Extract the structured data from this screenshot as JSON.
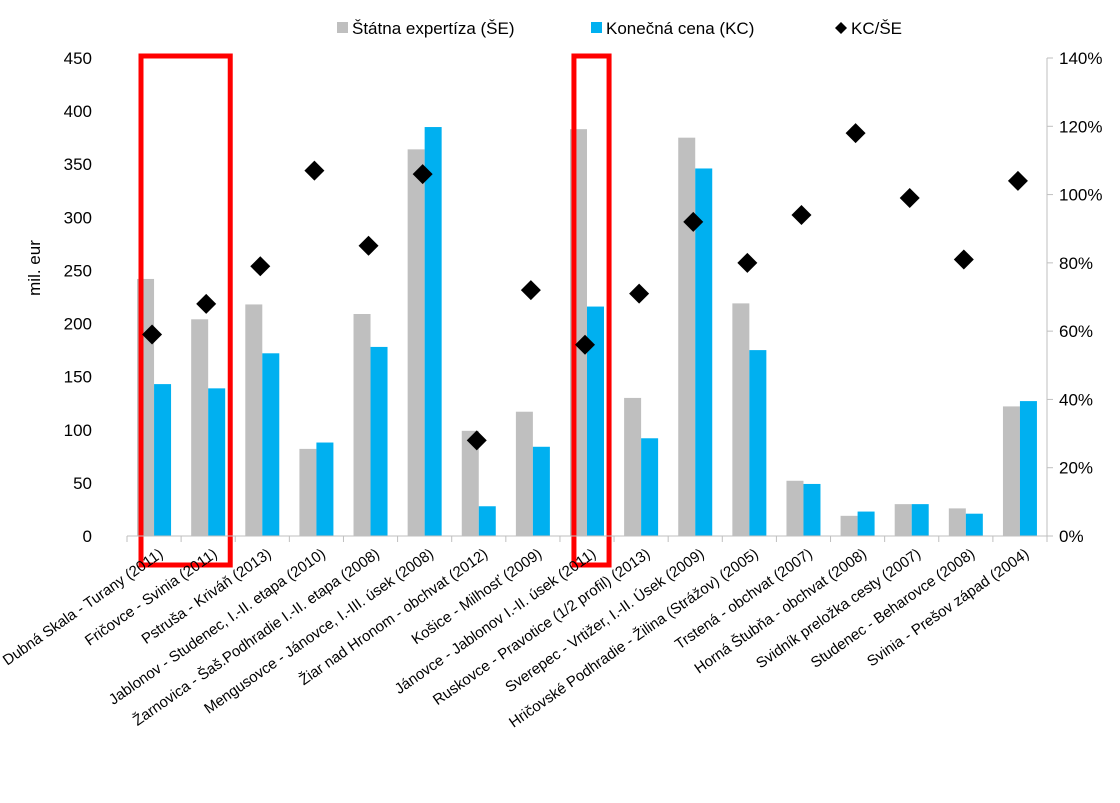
{
  "chart_data": {
    "type": "bar",
    "ylabel": "mil. eur",
    "ylim": [
      0,
      450
    ],
    "y_ticks": [
      "0",
      "50",
      "100",
      "150",
      "200",
      "250",
      "300",
      "350",
      "400",
      "450"
    ],
    "y2lim": [
      0,
      1.4
    ],
    "y2_ticks": [
      "0%",
      "20%",
      "40%",
      "60%",
      "80%",
      "100%",
      "120%",
      "140%"
    ],
    "grid": false,
    "legend_position": "top",
    "categories": [
      "Dubná Skala - Turany (2011)",
      "Fričovce - Svinia (2011)",
      "Pstruša - Kriváň (2013)",
      "Jablonov - Studenec, I.-II. etapa (2010)",
      "Žarnovica - Šaš.Podhradie I.-II. etapa (2008)",
      "Mengusovce - Jánovce, I.-III. úsek (2008)",
      "Žiar nad Hronom - obchvat (2012)",
      "Košice - Milhosť (2009)",
      "Jánovce - Jablonov I.-II. úsek (2011)",
      "Ruskovce - Pravotice (1/2 profil) (2013)",
      "Sverepec - Vrtižer, I.-II. Úsek (2009)",
      "Hričovské Podhradie - Žilina (Strážov) (2005)",
      "Trstená - obchvat (2007)",
      "Horná Štubňa - obchvat (2008)",
      "Svidník preložka cesty (2007)",
      "Studenec - Beharovce (2008)",
      "Svinia - Prešov západ (2004)"
    ],
    "series": [
      {
        "name": "Štátna expertíza (ŠE)",
        "type": "bar",
        "axis": "left",
        "color": "#bfbfbf",
        "values": [
          242,
          204,
          218,
          82,
          209,
          364,
          99,
          117,
          383,
          130,
          375,
          219,
          52,
          19,
          30,
          26,
          122
        ]
      },
      {
        "name": "Konečná cena (KC)",
        "type": "bar",
        "axis": "left",
        "color": "#00b0f0",
        "values": [
          143,
          139,
          172,
          88,
          178,
          385,
          28,
          84,
          216,
          92,
          346,
          175,
          49,
          23,
          30,
          21,
          127
        ]
      },
      {
        "name": "KC/ŠE",
        "type": "scatter",
        "axis": "right",
        "marker": "diamond",
        "color": "#000000",
        "values": [
          0.59,
          0.68,
          0.79,
          1.07,
          0.85,
          1.06,
          0.28,
          0.72,
          0.56,
          0.71,
          0.92,
          0.8,
          0.94,
          1.18,
          0.99,
          0.81,
          1.04
        ]
      }
    ],
    "highlight_boxes": [
      {
        "from_category": 0,
        "to_category": 1,
        "color": "#ff0000"
      },
      {
        "from_category": 8,
        "to_category": 8,
        "color": "#ff0000"
      }
    ]
  }
}
